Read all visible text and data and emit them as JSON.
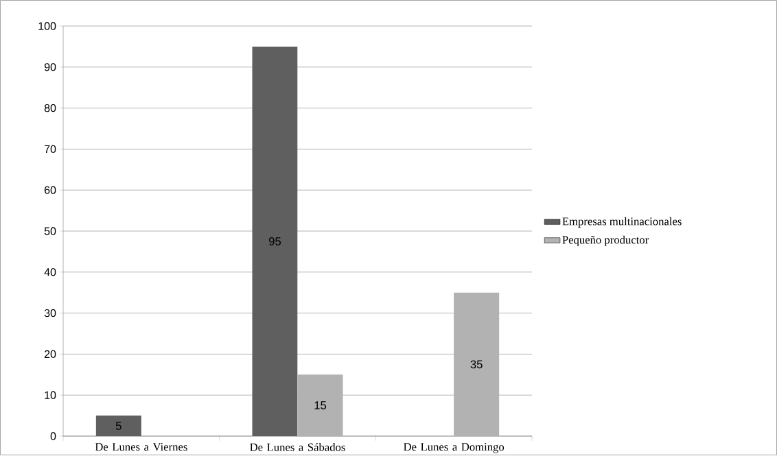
{
  "chart_data": {
    "type": "bar",
    "categories": [
      "De Lunes a Viernes",
      "De Lunes a Sábados",
      "De Lunes a Domingo"
    ],
    "series": [
      {
        "name": "Empresas multinacionales",
        "color": "#5f5f5f",
        "values": [
          5,
          95,
          null
        ]
      },
      {
        "name": "Pequeño productor",
        "color": "#b2b2b2",
        "values": [
          null,
          15,
          35
        ]
      }
    ],
    "ylim": [
      0,
      100
    ],
    "yticks": [
      0,
      10,
      20,
      30,
      40,
      50,
      60,
      70,
      80,
      90,
      100
    ],
    "grid": "y",
    "legend": "right",
    "data_labels": true
  }
}
